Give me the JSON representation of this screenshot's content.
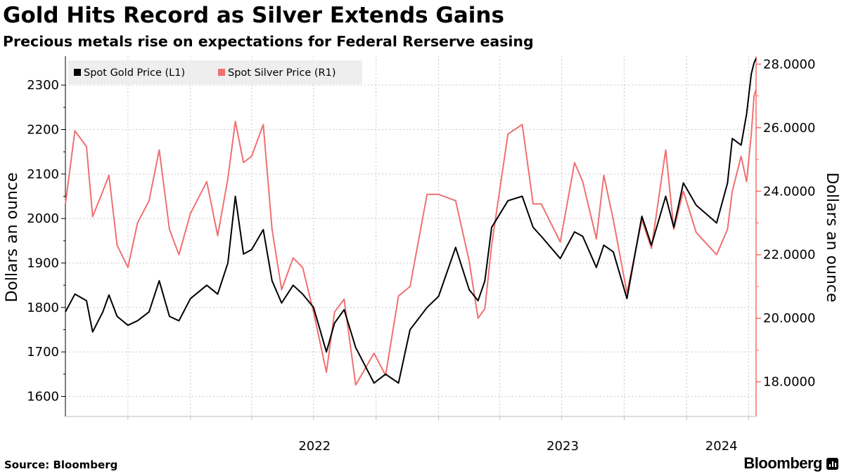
{
  "header": {
    "title": "Gold Hits Record as Silver Extends Gains",
    "subtitle": "Precious metals rise on expectations for Federal Rerserve easing"
  },
  "footer": {
    "source": "Source: Bloomberg",
    "logo_text": "Bloomberg"
  },
  "colors": {
    "gold": "#000000",
    "silver": "#f07070",
    "grid": "#c8c8c8",
    "legend_bg": "#eeeeee"
  },
  "chart_data": {
    "type": "line",
    "title": "Gold Hits Record as Silver Extends Gains",
    "subtitle": "Precious metals rise on expectations for Federal Rerserve easing",
    "x_tick_labels": [
      "2022",
      "2023",
      "2024"
    ],
    "x_ticks_at": [
      "2022-01-01",
      "2023-01-01",
      "2024-01-01"
    ],
    "x_range": [
      "2021-07-01",
      "2024-04-12"
    ],
    "left_axis": {
      "label": "Dollars an ounce",
      "ylim": [
        1555,
        2365
      ],
      "ticks": [
        1600,
        1700,
        1800,
        1900,
        2000,
        2100,
        2200,
        2300
      ],
      "tick_labels": [
        "1600",
        "1700",
        "1800",
        "1900",
        "2000",
        "2100",
        "2200",
        "2300"
      ]
    },
    "right_axis": {
      "label": "Dollars an ounce",
      "ylim": [
        16.91,
        28.25
      ],
      "ticks": [
        18,
        20,
        22,
        24,
        26,
        28
      ],
      "tick_labels": [
        "18.0000",
        "20.0000",
        "22.0000",
        "24.0000",
        "26.0000",
        "28.0000"
      ]
    },
    "grid": true,
    "legend_position": "top-left",
    "series": [
      {
        "name": "Spot Gold Price (L1)",
        "axis": "left",
        "color": "#000000",
        "points": [
          [
            "2021-07-01",
            1790
          ],
          [
            "2021-07-15",
            1830
          ],
          [
            "2021-08-01",
            1815
          ],
          [
            "2021-08-10",
            1745
          ],
          [
            "2021-08-25",
            1790
          ],
          [
            "2021-09-03",
            1828
          ],
          [
            "2021-09-15",
            1780
          ],
          [
            "2021-10-01",
            1760
          ],
          [
            "2021-10-15",
            1770
          ],
          [
            "2021-11-01",
            1790
          ],
          [
            "2021-11-16",
            1860
          ],
          [
            "2021-12-01",
            1780
          ],
          [
            "2021-12-15",
            1770
          ],
          [
            "2022-01-01",
            1820
          ],
          [
            "2022-01-25",
            1850
          ],
          [
            "2022-02-10",
            1830
          ],
          [
            "2022-02-25",
            1900
          ],
          [
            "2022-03-08",
            2050
          ],
          [
            "2022-03-20",
            1920
          ],
          [
            "2022-04-01",
            1930
          ],
          [
            "2022-04-18",
            1975
          ],
          [
            "2022-05-01",
            1860
          ],
          [
            "2022-05-15",
            1810
          ],
          [
            "2022-06-01",
            1850
          ],
          [
            "2022-06-15",
            1830
          ],
          [
            "2022-07-01",
            1800
          ],
          [
            "2022-07-20",
            1700
          ],
          [
            "2022-08-01",
            1765
          ],
          [
            "2022-08-15",
            1795
          ],
          [
            "2022-09-01",
            1710
          ],
          [
            "2022-09-28",
            1630
          ],
          [
            "2022-10-15",
            1650
          ],
          [
            "2022-11-03",
            1630
          ],
          [
            "2022-11-20",
            1750
          ],
          [
            "2022-12-15",
            1800
          ],
          [
            "2023-01-01",
            1825
          ],
          [
            "2023-01-26",
            1935
          ],
          [
            "2023-02-15",
            1840
          ],
          [
            "2023-02-28",
            1815
          ],
          [
            "2023-03-10",
            1860
          ],
          [
            "2023-03-20",
            1980
          ],
          [
            "2023-04-13",
            2040
          ],
          [
            "2023-05-04",
            2050
          ],
          [
            "2023-05-20",
            1980
          ],
          [
            "2023-06-01",
            1960
          ],
          [
            "2023-06-29",
            1910
          ],
          [
            "2023-07-20",
            1970
          ],
          [
            "2023-08-01",
            1960
          ],
          [
            "2023-08-21",
            1890
          ],
          [
            "2023-09-01",
            1940
          ],
          [
            "2023-09-15",
            1925
          ],
          [
            "2023-10-05",
            1820
          ],
          [
            "2023-10-27",
            2005
          ],
          [
            "2023-11-10",
            1940
          ],
          [
            "2023-12-01",
            2050
          ],
          [
            "2023-12-13",
            1980
          ],
          [
            "2023-12-27",
            2080
          ],
          [
            "2024-01-15",
            2030
          ],
          [
            "2024-02-14",
            1990
          ],
          [
            "2024-03-01",
            2080
          ],
          [
            "2024-03-08",
            2180
          ],
          [
            "2024-03-21",
            2165
          ],
          [
            "2024-03-29",
            2235
          ],
          [
            "2024-04-05",
            2325
          ],
          [
            "2024-04-09",
            2350
          ],
          [
            "2024-04-12",
            2360
          ]
        ]
      },
      {
        "name": "Spot Silver Price (R1)",
        "axis": "right",
        "color": "#f07070",
        "points": [
          [
            "2021-07-01",
            23.6
          ],
          [
            "2021-07-15",
            25.9
          ],
          [
            "2021-08-01",
            25.4
          ],
          [
            "2021-08-10",
            23.2
          ],
          [
            "2021-08-25",
            24.0
          ],
          [
            "2021-09-03",
            24.5
          ],
          [
            "2021-09-15",
            22.3
          ],
          [
            "2021-10-01",
            21.6
          ],
          [
            "2021-10-15",
            23.0
          ],
          [
            "2021-11-01",
            23.7
          ],
          [
            "2021-11-16",
            25.3
          ],
          [
            "2021-12-01",
            22.8
          ],
          [
            "2021-12-15",
            22.0
          ],
          [
            "2022-01-01",
            23.3
          ],
          [
            "2022-01-25",
            24.3
          ],
          [
            "2022-02-10",
            22.6
          ],
          [
            "2022-02-25",
            24.4
          ],
          [
            "2022-03-08",
            26.2
          ],
          [
            "2022-03-20",
            24.9
          ],
          [
            "2022-04-01",
            25.1
          ],
          [
            "2022-04-18",
            26.1
          ],
          [
            "2022-05-01",
            22.8
          ],
          [
            "2022-05-15",
            20.9
          ],
          [
            "2022-06-01",
            21.9
          ],
          [
            "2022-06-15",
            21.6
          ],
          [
            "2022-07-01",
            20.2
          ],
          [
            "2022-07-20",
            18.3
          ],
          [
            "2022-08-01",
            20.2
          ],
          [
            "2022-08-15",
            20.6
          ],
          [
            "2022-09-01",
            17.9
          ],
          [
            "2022-09-28",
            18.9
          ],
          [
            "2022-10-15",
            18.2
          ],
          [
            "2022-11-03",
            20.7
          ],
          [
            "2022-11-20",
            21.0
          ],
          [
            "2022-12-15",
            23.9
          ],
          [
            "2023-01-01",
            23.9
          ],
          [
            "2023-01-26",
            23.7
          ],
          [
            "2023-02-15",
            21.8
          ],
          [
            "2023-02-28",
            20.0
          ],
          [
            "2023-03-10",
            20.3
          ],
          [
            "2023-03-20",
            22.3
          ],
          [
            "2023-04-13",
            25.8
          ],
          [
            "2023-05-04",
            26.1
          ],
          [
            "2023-05-20",
            23.6
          ],
          [
            "2023-06-01",
            23.6
          ],
          [
            "2023-06-29",
            22.4
          ],
          [
            "2023-07-20",
            24.9
          ],
          [
            "2023-08-01",
            24.3
          ],
          [
            "2023-08-21",
            22.5
          ],
          [
            "2023-09-01",
            24.5
          ],
          [
            "2023-09-15",
            23.1
          ],
          [
            "2023-10-05",
            20.8
          ],
          [
            "2023-10-27",
            23.1
          ],
          [
            "2023-11-10",
            22.2
          ],
          [
            "2023-12-01",
            25.3
          ],
          [
            "2023-12-13",
            22.8
          ],
          [
            "2023-12-27",
            24.0
          ],
          [
            "2024-01-15",
            22.7
          ],
          [
            "2024-02-14",
            22.0
          ],
          [
            "2024-03-01",
            22.8
          ],
          [
            "2024-03-08",
            24.0
          ],
          [
            "2024-03-21",
            25.1
          ],
          [
            "2024-03-29",
            24.3
          ],
          [
            "2024-04-05",
            25.8
          ],
          [
            "2024-04-09",
            27.0
          ],
          [
            "2024-04-12",
            27.2
          ]
        ]
      }
    ]
  }
}
